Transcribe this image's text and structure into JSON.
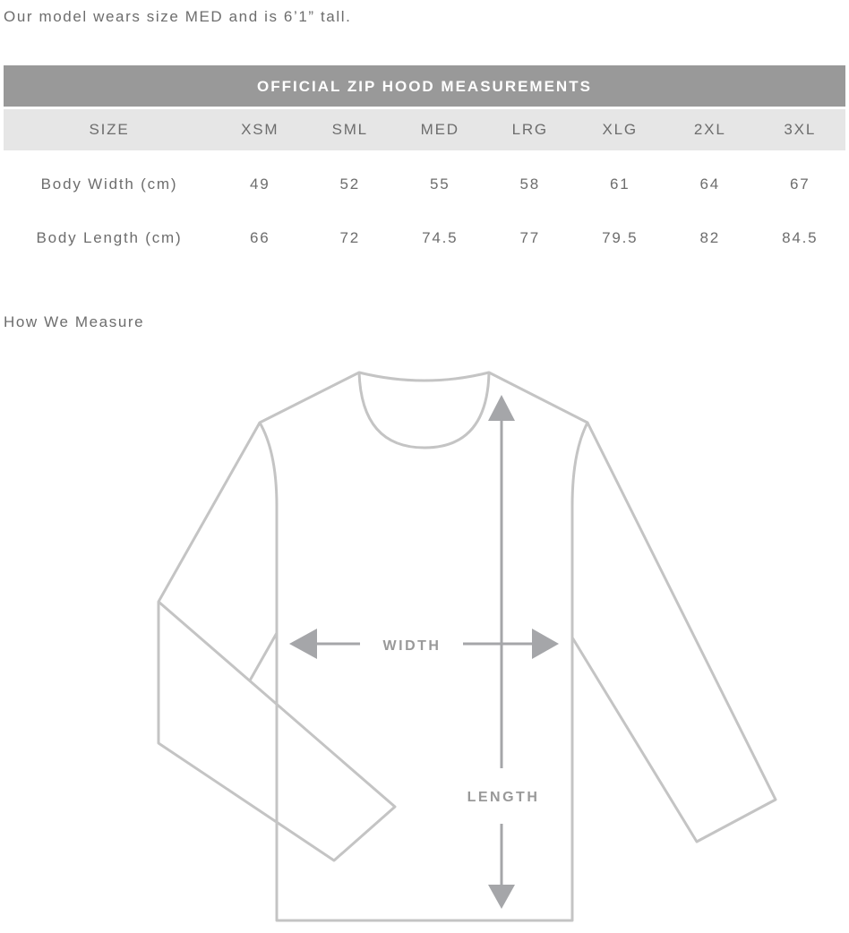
{
  "intro": "Our model wears size MED and is 6’1” tall.",
  "table": {
    "title": "OFFICIAL ZIP HOOD MEASUREMENTS",
    "headers": [
      "SIZE",
      "XSM",
      "SML",
      "MED",
      "LRG",
      "XLG",
      "2XL",
      "3XL"
    ],
    "rows": [
      {
        "label": "Body Width (cm)",
        "values": [
          "49",
          "52",
          "55",
          "58",
          "61",
          "64",
          "67"
        ]
      },
      {
        "label": "Body Length (cm)",
        "values": [
          "66",
          "72",
          "74.5",
          "77",
          "79.5",
          "82",
          "84.5"
        ]
      }
    ]
  },
  "how_we_measure": "How We Measure",
  "diagram": {
    "width_label": "WIDTH",
    "length_label": "LENGTH",
    "line_color": "#c4c4c4",
    "arrow_color": "#a5a6a9"
  }
}
